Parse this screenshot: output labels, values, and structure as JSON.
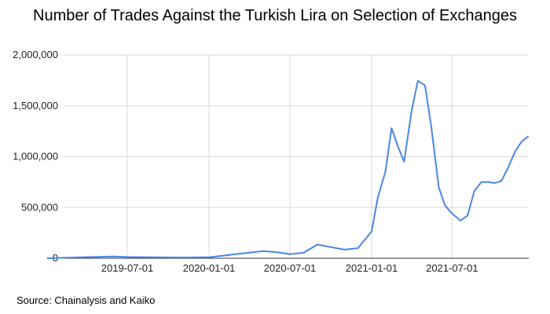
{
  "title": "Number of Trades Against the Turkish Lira on Selection of Exchanges",
  "source": "Source: Chainalysis and Kaiko",
  "colors": {
    "line": "#4a86e8",
    "grid": "#d9d9d9",
    "axis": "#333333"
  },
  "chart_data": {
    "type": "line",
    "title": "Number of Trades Against the Turkish Lira on Selection of Exchanges",
    "xlabel": "",
    "ylabel": "",
    "ylim": [
      0,
      2000000
    ],
    "grid": true,
    "legend": "none",
    "y_ticks": [
      "0",
      "500,000",
      "1,000,000",
      "1,500,000",
      "2,000,000"
    ],
    "x_ticks": [
      "2019-07-01",
      "2020-01-01",
      "2020-07-01",
      "2021-01-01",
      "2021-07-01"
    ],
    "series": [
      {
        "name": "Number of Trades",
        "x": [
          "2019-01-01",
          "2019-03-01",
          "2019-05-01",
          "2019-06-01",
          "2019-07-01",
          "2019-09-01",
          "2019-11-01",
          "2020-01-01",
          "2020-02-01",
          "2020-03-01",
          "2020-04-01",
          "2020-05-01",
          "2020-06-01",
          "2020-07-01",
          "2020-08-01",
          "2020-09-01",
          "2020-10-01",
          "2020-11-01",
          "2020-12-01",
          "2020-12-20",
          "2021-01-01",
          "2021-01-15",
          "2021-02-01",
          "2021-02-15",
          "2021-03-01",
          "2021-03-15",
          "2021-04-01",
          "2021-04-15",
          "2021-05-01",
          "2021-05-15",
          "2021-06-01",
          "2021-06-15",
          "2021-07-01",
          "2021-07-20",
          "2021-08-05",
          "2021-08-20",
          "2021-09-05",
          "2021-09-20",
          "2021-10-05",
          "2021-10-20",
          "2021-11-05",
          "2021-11-20",
          "2021-12-05",
          "2021-12-20"
        ],
        "values": [
          0,
          8000,
          15000,
          18000,
          12000,
          10000,
          8000,
          10000,
          25000,
          40000,
          55000,
          70000,
          60000,
          40000,
          55000,
          135000,
          110000,
          85000,
          100000,
          200000,
          265000,
          600000,
          850000,
          1280000,
          1100000,
          950000,
          1450000,
          1745000,
          1700000,
          1300000,
          700000,
          520000,
          440000,
          370000,
          420000,
          660000,
          750000,
          750000,
          740000,
          760000,
          900000,
          1050000,
          1150000,
          1200000
        ]
      }
    ]
  }
}
